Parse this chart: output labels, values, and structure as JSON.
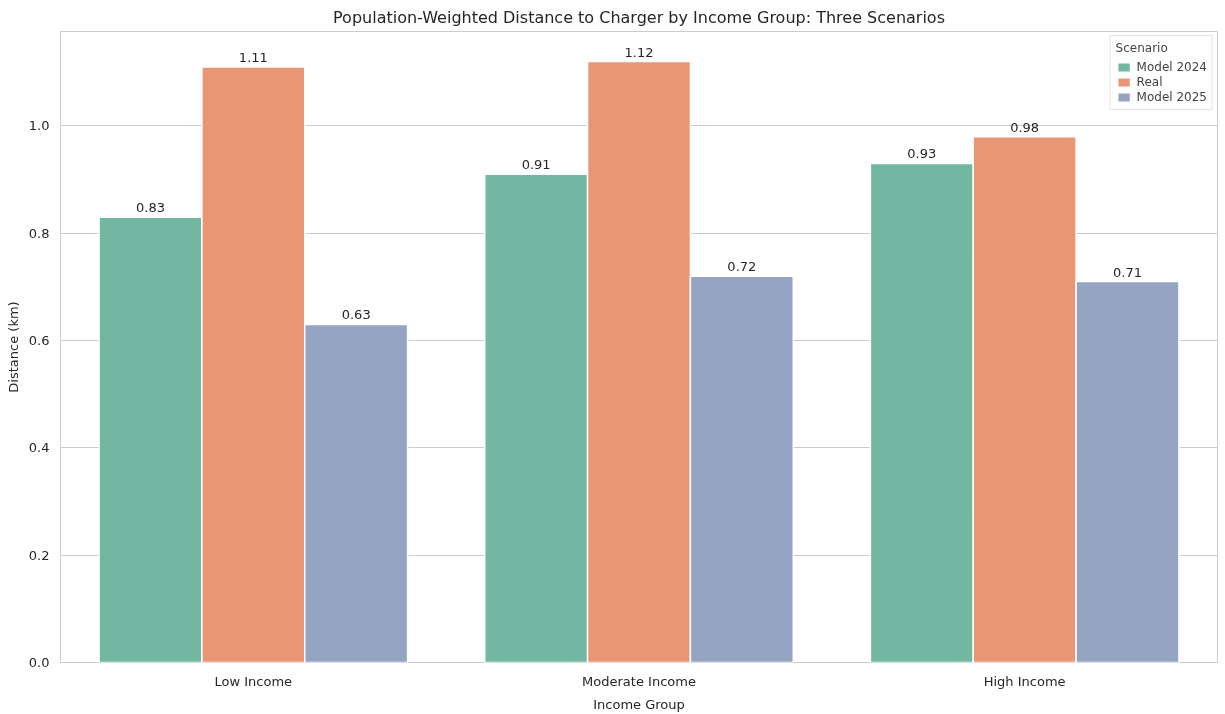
{
  "chart_data": {
    "type": "bar",
    "title": "Population-Weighted Distance to Charger by Income Group: Three Scenarios",
    "xlabel": "Income Group",
    "ylabel": "Distance (km)",
    "legend_title": "Scenario",
    "categories": [
      "Low Income",
      "Moderate Income",
      "High Income"
    ],
    "series": [
      {
        "name": "Model 2024",
        "color": "#72b7a1",
        "values": [
          0.83,
          0.91,
          0.93
        ]
      },
      {
        "name": "Real",
        "color": "#e99675",
        "values": [
          1.11,
          1.12,
          0.98
        ]
      },
      {
        "name": "Model 2025",
        "color": "#95a4c3",
        "values": [
          0.63,
          0.72,
          0.71
        ]
      }
    ],
    "ylim": [
      0,
      1.176
    ],
    "yticks": [
      {
        "value": 0,
        "label": "0.0"
      },
      0.2,
      0.4,
      0.6,
      0.8,
      {
        "value": 1,
        "label": "1.0"
      }
    ],
    "grid": "y",
    "legend": "top right",
    "data_labels": true
  }
}
